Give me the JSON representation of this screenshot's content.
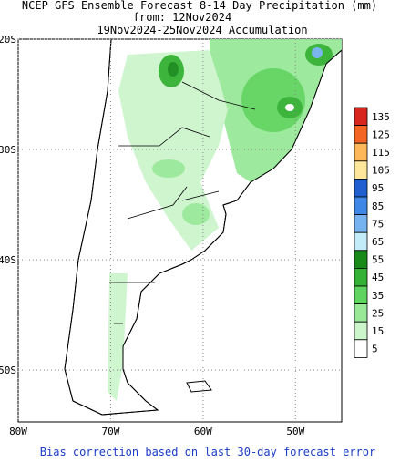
{
  "map": {
    "title": "NCEP GFS Ensemble Forecast 8-14 Day Precipitation (mm)",
    "subtitle1": "from: 12Nov2024",
    "subtitle2": "19Nov2024-25Nov2024 Accumulation",
    "lonlim": [
      -80,
      -45
    ],
    "latlim": [
      -20,
      -54.7
    ],
    "lat_ticks": [
      {
        "value": -20,
        "label": "20S"
      },
      {
        "value": -30,
        "label": "30S"
      },
      {
        "value": -40,
        "label": "40S"
      },
      {
        "value": -50,
        "label": "50S"
      }
    ],
    "lon_ticks": [
      {
        "value": -80,
        "label": "80W"
      },
      {
        "value": -70,
        "label": "70W"
      },
      {
        "value": -60,
        "label": "60W"
      },
      {
        "value": -50,
        "label": "50W"
      }
    ],
    "grid": true,
    "legend": [
      {
        "value": 135,
        "color": "#d7261e"
      },
      {
        "value": 125,
        "color": "#f26522"
      },
      {
        "value": 115,
        "color": "#fdb85a"
      },
      {
        "value": 105,
        "color": "#fee79a"
      },
      {
        "value": 95,
        "color": "#1f5fd0"
      },
      {
        "value": 85,
        "color": "#3d88e6"
      },
      {
        "value": 75,
        "color": "#74b2f0"
      },
      {
        "value": 65,
        "color": "#c2ecf7"
      },
      {
        "value": 55,
        "color": "#178a1a"
      },
      {
        "value": 45,
        "color": "#33b233"
      },
      {
        "value": 35,
        "color": "#5fd45f"
      },
      {
        "value": 25,
        "color": "#98e898"
      },
      {
        "value": 15,
        "color": "#ccf5cc"
      },
      {
        "value": 5,
        "color": "#ffffff"
      }
    ],
    "footer": "Bias correction based on last 30-day forecast error"
  }
}
